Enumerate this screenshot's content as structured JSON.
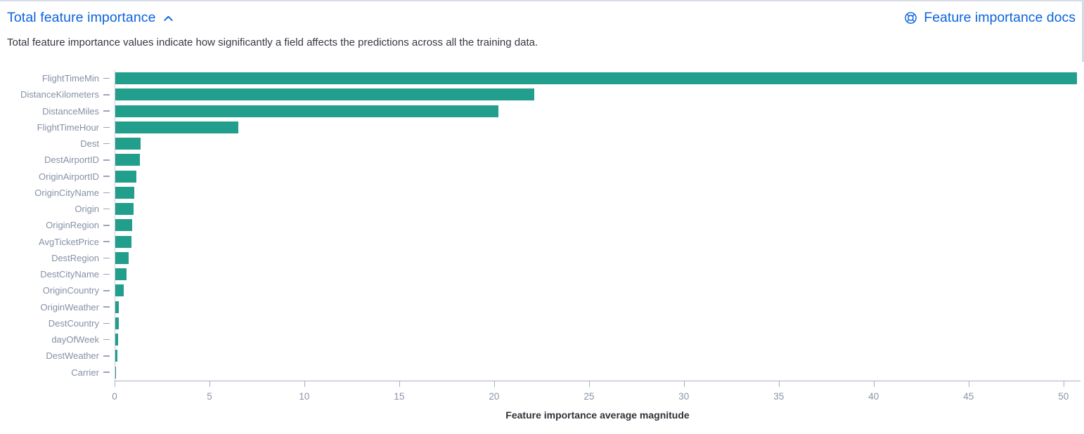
{
  "header": {
    "title": "Total feature importance",
    "docs_link": "Feature importance docs",
    "link_color": "#0B64DD"
  },
  "description": "Total feature importance values indicate how significantly a field affects the predictions across all the training data.",
  "chart_data": {
    "type": "bar",
    "orientation": "horizontal",
    "title": "",
    "xlabel": "Feature importance average magnitude",
    "ylabel": "",
    "categories": [
      "FlightTimeMin",
      "DistanceKilometers",
      "DistanceMiles",
      "FlightTimeHour",
      "Dest",
      "DestAirportID",
      "OriginAirportID",
      "OriginCityName",
      "Origin",
      "OriginRegion",
      "AvgTicketPrice",
      "DestRegion",
      "DestCityName",
      "OriginCountry",
      "OriginWeather",
      "DestCountry",
      "dayOfWeek",
      "DestWeather",
      "Carrier"
    ],
    "values": [
      50.7,
      22.1,
      20.2,
      6.5,
      1.35,
      1.3,
      1.1,
      1.0,
      0.95,
      0.9,
      0.85,
      0.7,
      0.6,
      0.45,
      0.2,
      0.19,
      0.15,
      0.12,
      0.05
    ],
    "x_ticks": [
      0,
      5,
      10,
      15,
      20,
      25,
      30,
      35,
      40,
      45,
      50
    ],
    "xlim": [
      0,
      50.9
    ],
    "grid": false,
    "legend": false,
    "bar_color": "#229E8C",
    "axis_line_color": "#A5AFC0",
    "tick_label_color": "#8A94A6",
    "category_label_color": "#8691A5"
  }
}
